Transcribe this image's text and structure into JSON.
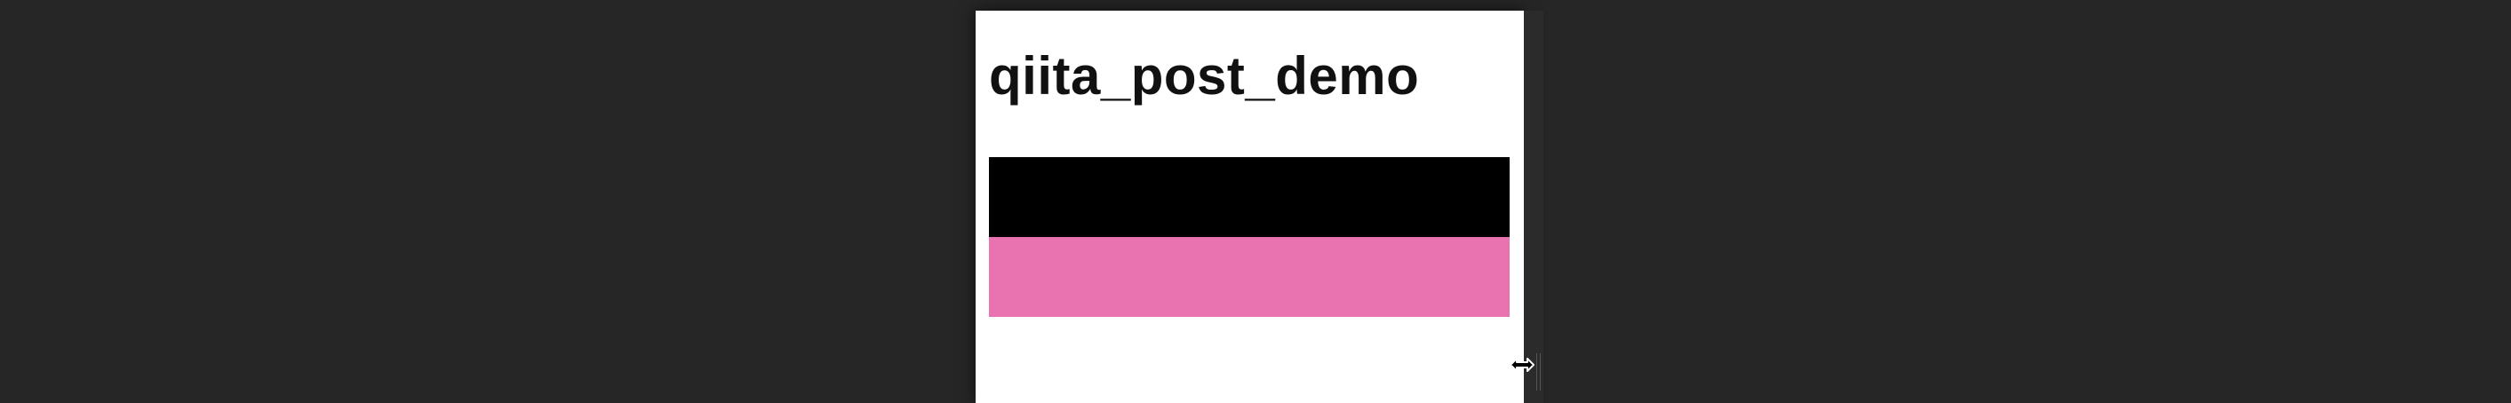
{
  "page": {
    "title": "qiita_post_demo"
  },
  "blocks": [
    {
      "color": "#000000"
    },
    {
      "color": "#e972b0"
    }
  ],
  "colors": {
    "background": "#262626",
    "viewport": "#ffffff"
  },
  "cursor": {
    "icon": "horizontal-resize-cursor-icon"
  }
}
